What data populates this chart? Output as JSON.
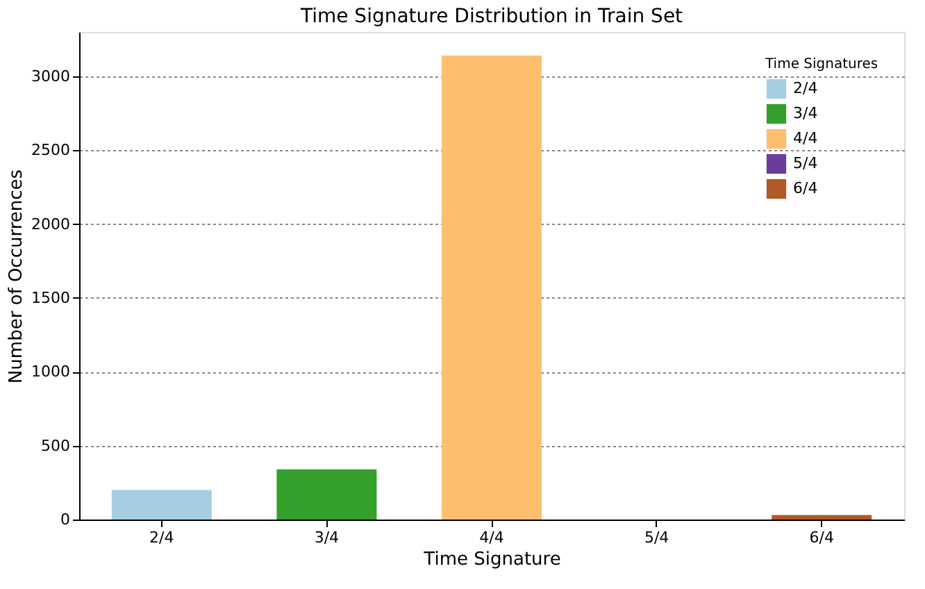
{
  "chart_data": {
    "type": "bar",
    "title": "Time Signature Distribution in Train Set",
    "xlabel": "Time Signature",
    "ylabel": "Number of Occurrences",
    "legend_title": "Time Signatures",
    "categories": [
      "2/4",
      "3/4",
      "4/4",
      "5/4",
      "6/4"
    ],
    "series": [
      {
        "name": "2/4",
        "color": "#a6cee3",
        "values": [
          200,
          null,
          null,
          null,
          null
        ]
      },
      {
        "name": "3/4",
        "color": "#33a02c",
        "values": [
          null,
          340,
          null,
          null,
          null
        ]
      },
      {
        "name": "4/4",
        "color": "#fdbf6f",
        "values": [
          null,
          null,
          3140,
          null,
          null
        ]
      },
      {
        "name": "5/4",
        "color": "#6a3d9a",
        "values": [
          null,
          null,
          null,
          0,
          null
        ]
      },
      {
        "name": "6/4",
        "color": "#b15928",
        "values": [
          null,
          null,
          null,
          null,
          30
        ]
      }
    ],
    "ylim": [
      0,
      3300
    ],
    "yticks": [
      0,
      500,
      {
        "value": 1000,
        "label": "1000"
      },
      {
        "value": 1500,
        "label": "1500"
      },
      {
        "value": 2000,
        "label": "2000"
      },
      {
        "value": 2500,
        "label": "2500"
      },
      {
        "value": 3000,
        "label": "3000"
      }
    ],
    "grid": "y",
    "legend": "top right"
  }
}
